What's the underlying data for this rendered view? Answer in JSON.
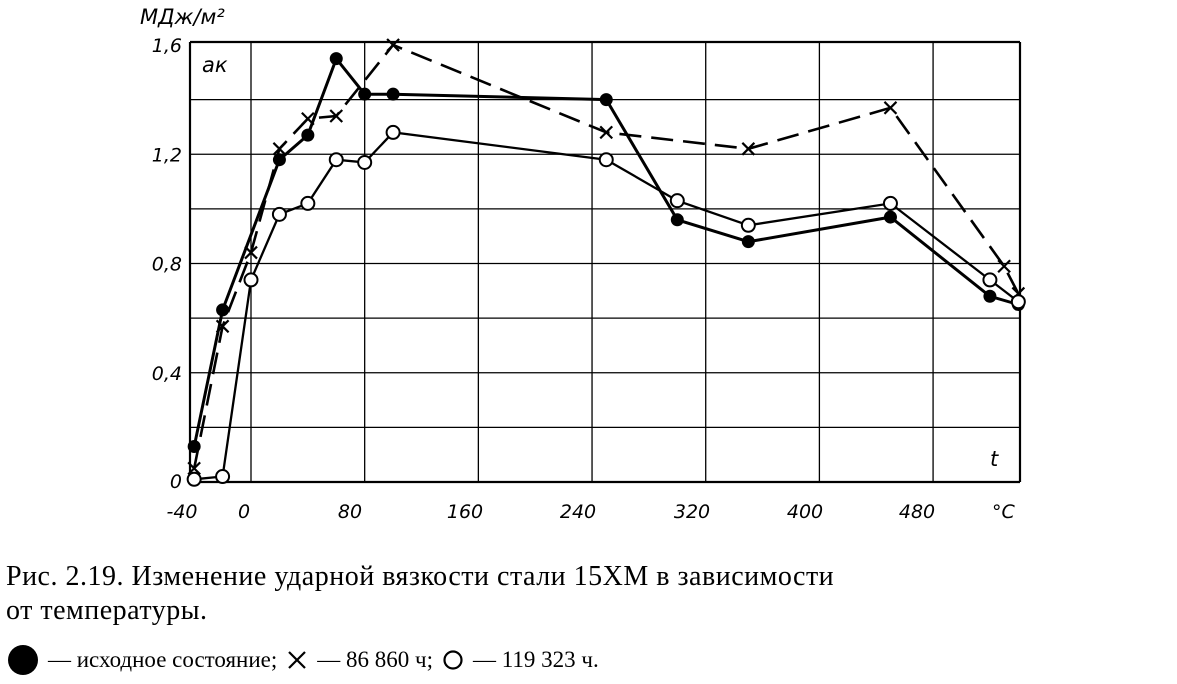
{
  "chart_data": {
    "type": "line",
    "ylabel": "МДж/м²",
    "symbol": "aк",
    "xlabel": "t",
    "xunit": "°C",
    "xlim": [
      -40,
      560
    ],
    "ylim": [
      0,
      1.6
    ],
    "xticks": [
      "-40",
      "0",
      "80",
      "160",
      "240",
      "320",
      "400",
      "480"
    ],
    "yticks": [
      "0",
      "0,4",
      "0,8",
      "1,2",
      "1,6"
    ],
    "grid": true,
    "series": [
      {
        "marker": "filled-circle",
        "style": "solid",
        "x": [
          -40,
          -20,
          20,
          40,
          60,
          80,
          100,
          250,
          300,
          350,
          450,
          520,
          540
        ],
        "y": [
          0.13,
          0.63,
          1.18,
          1.27,
          1.55,
          1.42,
          1.42,
          1.4,
          0.96,
          0.88,
          0.97,
          0.68,
          0.65
        ]
      },
      {
        "marker": "cross",
        "style": "dashed",
        "x": [
          -40,
          -20,
          0,
          20,
          40,
          60,
          100,
          250,
          350,
          450,
          530,
          540
        ],
        "y": [
          0.05,
          0.57,
          0.84,
          1.22,
          1.33,
          1.34,
          1.6,
          1.28,
          1.22,
          1.37,
          0.79,
          0.69
        ]
      },
      {
        "marker": "open-circle",
        "style": "solid",
        "x": [
          -40,
          -20,
          0,
          20,
          40,
          60,
          80,
          100,
          250,
          300,
          350,
          450,
          520,
          540
        ],
        "y": [
          0.01,
          0.02,
          0.74,
          0.98,
          1.02,
          1.18,
          1.17,
          1.28,
          1.18,
          1.03,
          0.94,
          1.02,
          0.74,
          0.66
        ]
      }
    ]
  },
  "caption": {
    "line1": "Рис. 2.19. Изменение ударной вязкости стали 15ХМ в зависимости",
    "line2": "от температуры."
  },
  "legend": {
    "item1": "— исходное состояние;",
    "item2": "— 86 860 ч;",
    "item3": "— 119 323 ч."
  }
}
